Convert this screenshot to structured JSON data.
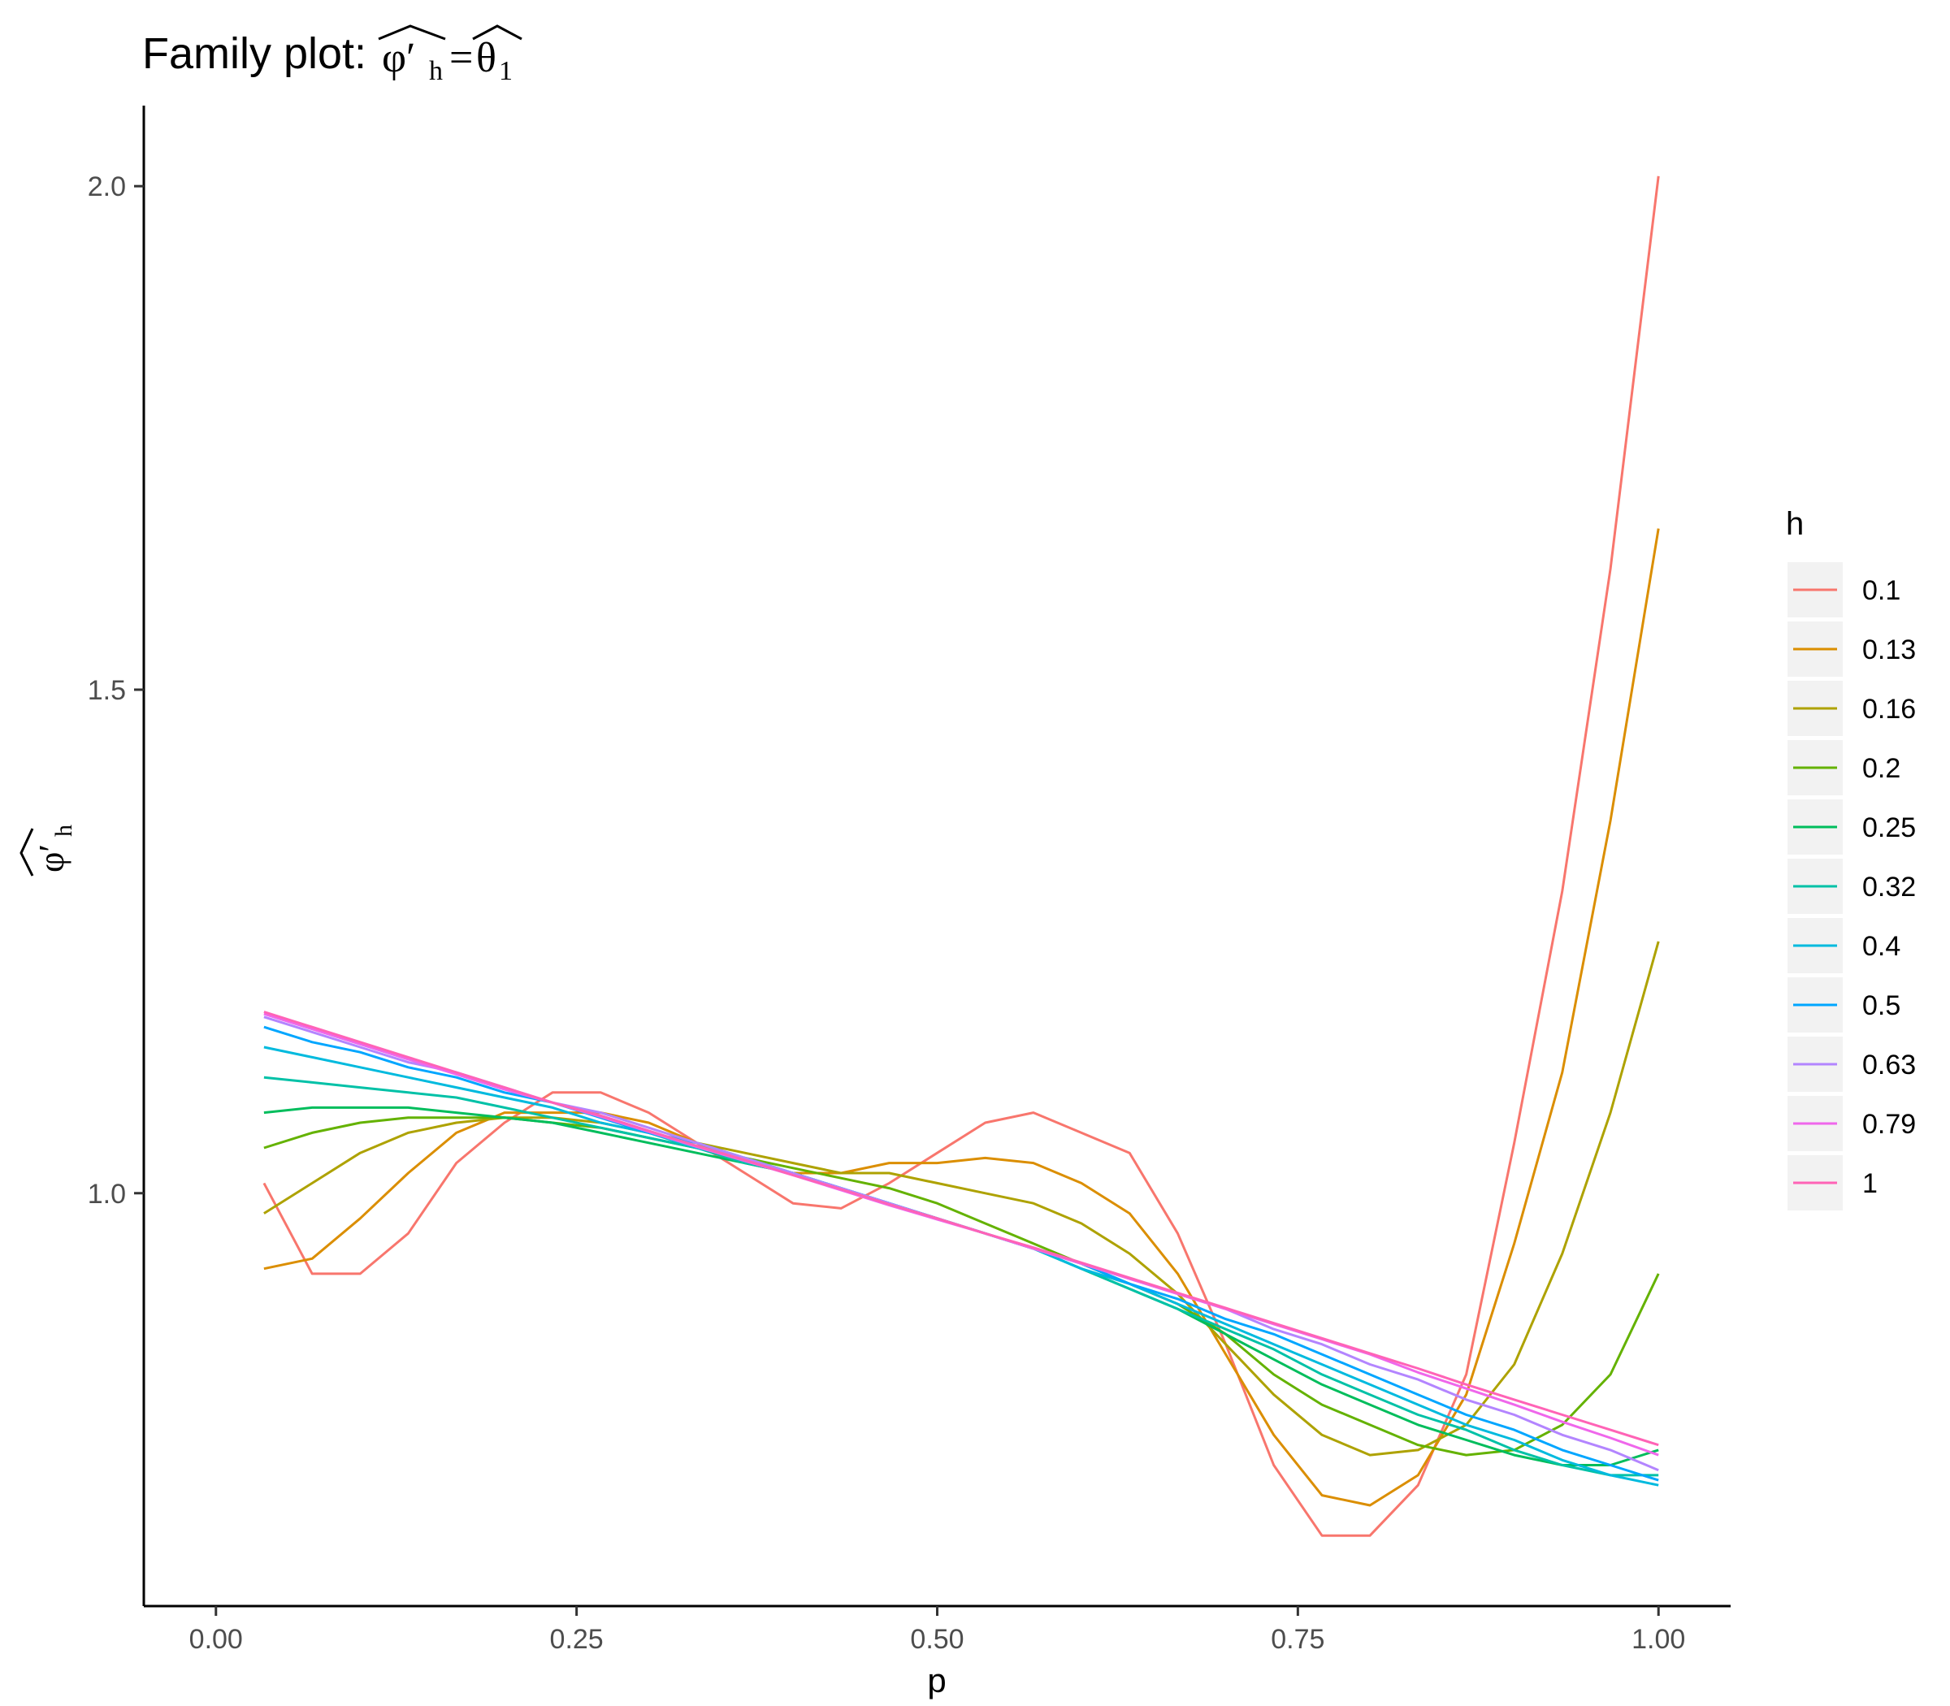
{
  "title": {
    "prefix": "Family plot: ",
    "lhs_symbol": "φ′",
    "lhs_subscript": "h",
    "equals": "=",
    "rhs_symbol": "θ",
    "rhs_subscript": "1"
  },
  "chart_data": {
    "type": "line",
    "xlabel": "p",
    "ylabel": {
      "symbol": "φ′",
      "subscript": "h"
    },
    "xlim": [
      -0.05,
      1.05
    ],
    "ylim": [
      0.59,
      2.08
    ],
    "x_ticks": [
      {
        "value": 0.0,
        "label": "0.00"
      },
      {
        "value": 0.25,
        "label": "0.25"
      },
      {
        "value": 0.5,
        "label": "0.50"
      },
      {
        "value": 0.75,
        "label": "0.75"
      },
      {
        "value": 1.0,
        "label": "1.00"
      }
    ],
    "y_ticks": [
      {
        "value": 1.0,
        "label": "1.0"
      },
      {
        "value": 1.5,
        "label": "1.5"
      },
      {
        "value": 2.0,
        "label": "2.0"
      }
    ],
    "grid": false,
    "legend": {
      "title": "h",
      "position": "right"
    },
    "x": [
      0.0333,
      0.0667,
      0.1,
      0.1333,
      0.1667,
      0.2,
      0.2333,
      0.2667,
      0.3,
      0.3333,
      0.3667,
      0.4,
      0.4333,
      0.4667,
      0.5,
      0.5333,
      0.5667,
      0.6,
      0.6333,
      0.6667,
      0.7,
      0.7333,
      0.7667,
      0.8,
      0.8333,
      0.8667,
      0.9,
      0.9333,
      0.9667,
      1.0
    ],
    "series": [
      {
        "name": "0.1",
        "color": "#F8766D",
        "values": [
          1.01,
          0.92,
          0.92,
          0.96,
          1.03,
          1.07,
          1.1,
          1.1,
          1.08,
          1.05,
          1.02,
          0.99,
          0.985,
          1.01,
          1.04,
          1.07,
          1.08,
          1.06,
          1.04,
          0.96,
          0.85,
          0.73,
          0.66,
          0.66,
          0.71,
          0.82,
          1.05,
          1.3,
          1.62,
          2.01
        ]
      },
      {
        "name": "0.13",
        "color": "#DB8E00",
        "values": [
          0.925,
          0.935,
          0.975,
          1.02,
          1.06,
          1.08,
          1.08,
          1.08,
          1.07,
          1.05,
          1.03,
          1.02,
          1.02,
          1.03,
          1.03,
          1.035,
          1.03,
          1.01,
          0.98,
          0.92,
          0.84,
          0.76,
          0.7,
          0.69,
          0.72,
          0.8,
          0.95,
          1.12,
          1.37,
          1.66
        ]
      },
      {
        "name": "0.16",
        "color": "#AEA200",
        "values": [
          0.98,
          1.01,
          1.04,
          1.06,
          1.07,
          1.075,
          1.075,
          1.07,
          1.06,
          1.05,
          1.04,
          1.03,
          1.02,
          1.02,
          1.01,
          1.0,
          0.99,
          0.97,
          0.94,
          0.9,
          0.85,
          0.8,
          0.76,
          0.74,
          0.745,
          0.77,
          0.83,
          0.94,
          1.08,
          1.25
        ]
      },
      {
        "name": "0.2",
        "color": "#64B200",
        "values": [
          1.045,
          1.06,
          1.07,
          1.075,
          1.075,
          1.075,
          1.07,
          1.065,
          1.055,
          1.045,
          1.035,
          1.025,
          1.015,
          1.005,
          0.99,
          0.97,
          0.95,
          0.93,
          0.91,
          0.89,
          0.86,
          0.82,
          0.79,
          0.77,
          0.75,
          0.74,
          0.745,
          0.77,
          0.82,
          0.92
        ]
      },
      {
        "name": "0.25",
        "color": "#00BD5C",
        "values": [
          1.08,
          1.085,
          1.085,
          1.085,
          1.08,
          1.075,
          1.07,
          1.06,
          1.05,
          1.04,
          1.03,
          1.02,
          1.005,
          0.99,
          0.975,
          0.96,
          0.945,
          0.925,
          0.905,
          0.885,
          0.86,
          0.835,
          0.81,
          0.79,
          0.77,
          0.755,
          0.74,
          0.73,
          0.73,
          0.745
        ]
      },
      {
        "name": "0.32",
        "color": "#00C1A7",
        "values": [
          1.115,
          1.11,
          1.105,
          1.1,
          1.095,
          1.085,
          1.075,
          1.065,
          1.055,
          1.045,
          1.03,
          1.02,
          1.005,
          0.99,
          0.975,
          0.96,
          0.945,
          0.925,
          0.905,
          0.885,
          0.865,
          0.845,
          0.82,
          0.8,
          0.78,
          0.765,
          0.745,
          0.73,
          0.72,
          0.72
        ]
      },
      {
        "name": "0.4",
        "color": "#00BADE",
        "values": [
          1.145,
          1.135,
          1.125,
          1.115,
          1.105,
          1.095,
          1.085,
          1.07,
          1.06,
          1.045,
          1.035,
          1.02,
          1.005,
          0.99,
          0.975,
          0.96,
          0.945,
          0.925,
          0.91,
          0.89,
          0.87,
          0.85,
          0.83,
          0.81,
          0.79,
          0.77,
          0.755,
          0.735,
          0.72,
          0.71
        ]
      },
      {
        "name": "0.5",
        "color": "#00A6FF",
        "values": [
          1.165,
          1.15,
          1.14,
          1.125,
          1.115,
          1.1,
          1.09,
          1.075,
          1.06,
          1.05,
          1.035,
          1.02,
          1.005,
          0.99,
          0.975,
          0.96,
          0.945,
          0.93,
          0.91,
          0.895,
          0.875,
          0.86,
          0.84,
          0.82,
          0.8,
          0.78,
          0.765,
          0.745,
          0.73,
          0.715
        ]
      },
      {
        "name": "0.63",
        "color": "#B385FF",
        "values": [
          1.175,
          1.16,
          1.145,
          1.13,
          1.12,
          1.105,
          1.09,
          1.08,
          1.065,
          1.05,
          1.035,
          1.02,
          1.005,
          0.99,
          0.975,
          0.96,
          0.945,
          0.93,
          0.915,
          0.9,
          0.885,
          0.865,
          0.85,
          0.83,
          0.815,
          0.795,
          0.78,
          0.76,
          0.745,
          0.725
        ]
      },
      {
        "name": "0.79",
        "color": "#EF67EB",
        "values": [
          1.178,
          1.163,
          1.148,
          1.133,
          1.118,
          1.103,
          1.09,
          1.076,
          1.061,
          1.046,
          1.032,
          1.018,
          1.003,
          0.988,
          0.974,
          0.96,
          0.945,
          0.93,
          0.915,
          0.9,
          0.885,
          0.87,
          0.855,
          0.84,
          0.822,
          0.806,
          0.79,
          0.773,
          0.757,
          0.74
        ]
      },
      {
        "name": "1",
        "color": "#FF63B6",
        "values": [
          1.18,
          1.165,
          1.15,
          1.135,
          1.12,
          1.105,
          1.09,
          1.077,
          1.062,
          1.047,
          1.033,
          1.018,
          1.004,
          0.989,
          0.975,
          0.96,
          0.946,
          0.931,
          0.916,
          0.901,
          0.886,
          0.871,
          0.856,
          0.841,
          0.826,
          0.81,
          0.795,
          0.78,
          0.765,
          0.75
        ]
      }
    ]
  }
}
